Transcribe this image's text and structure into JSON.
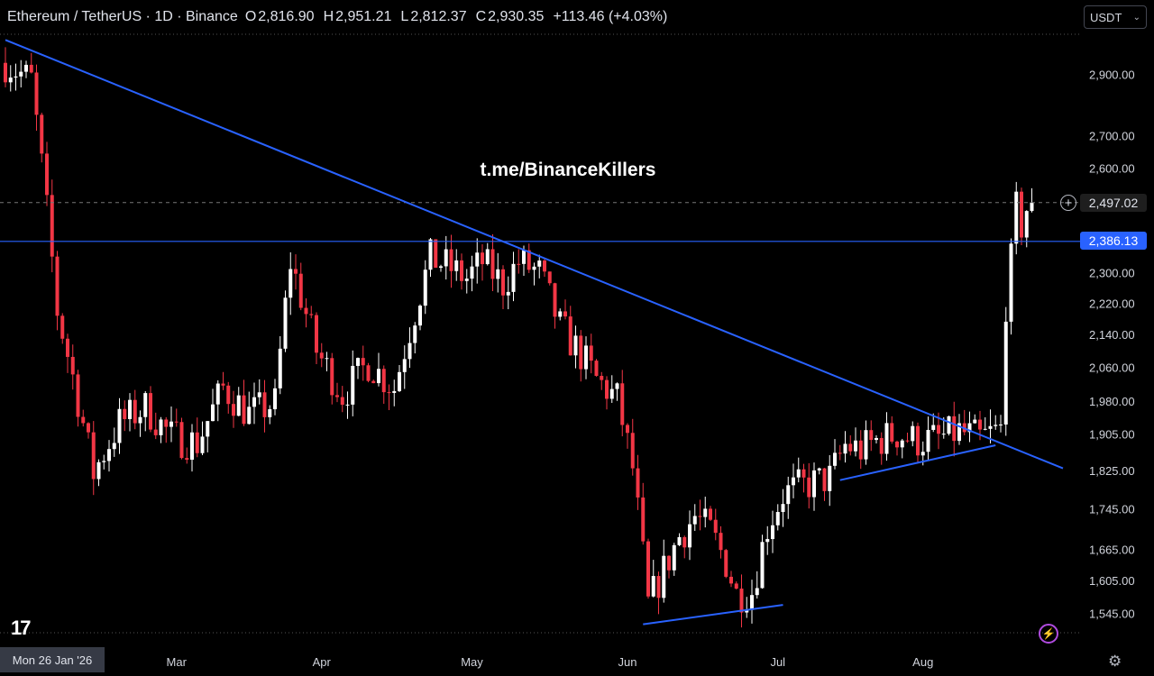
{
  "header": {
    "title": "Ethereum / TetherUS · 1D · Binance",
    "open_label": "O",
    "open": "2,816.90",
    "high_label": "H",
    "high": "2,951.21",
    "low_label": "L",
    "low": "2,812.37",
    "close_label": "C",
    "close": "2,930.35",
    "change": "+113.46 (+4.03%)"
  },
  "currency_selector": {
    "value": "USDT",
    "icon": "chevron-down-icon"
  },
  "watermark": "t.me/BinanceKillers",
  "crosshair_date": "Mon 26 Jan '26",
  "price_tags": {
    "last": "2,497.02",
    "level": "2,386.13"
  },
  "colors": {
    "up": "#ffffff",
    "down": "#f23645",
    "trendline": "#2962ff",
    "background": "#000000"
  },
  "chart_data": {
    "type": "candlestick",
    "symbol": "ETHUSDT",
    "interval": "1D",
    "x_ticks": [
      "Mar",
      "Apr",
      "May",
      "Jun",
      "Jul",
      "Aug"
    ],
    "y_ticks": [
      "2,900.00",
      "2,700.00",
      "2,600.00",
      "2,300.00",
      "2,220.00",
      "2,140.00",
      "2,060.00",
      "1,980.00",
      "1,905.00",
      "1,825.00",
      "1,745.00",
      "1,665.00",
      "1,605.00",
      "1,545.00"
    ],
    "y_scale": "log",
    "ylim": [
      1510,
      3040
    ],
    "anchors": [
      {
        "day": 0,
        "price": 2940
      },
      {
        "day": 5,
        "price": 2880
      },
      {
        "day": 10,
        "price": 2200
      },
      {
        "day": 17,
        "price": 1820
      },
      {
        "day": 22,
        "price": 1930
      },
      {
        "day": 27,
        "price": 1965
      },
      {
        "day": 32,
        "price": 1900
      },
      {
        "day": 37,
        "price": 1885
      },
      {
        "day": 42,
        "price": 2010
      },
      {
        "day": 47,
        "price": 1950
      },
      {
        "day": 52,
        "price": 1975
      },
      {
        "day": 55,
        "price": 2330
      },
      {
        "day": 60,
        "price": 2100
      },
      {
        "day": 65,
        "price": 1995
      },
      {
        "day": 70,
        "price": 2070
      },
      {
        "day": 75,
        "price": 2010
      },
      {
        "day": 79,
        "price": 2200
      },
      {
        "day": 82,
        "price": 2340
      },
      {
        "day": 85,
        "price": 2320
      },
      {
        "day": 89,
        "price": 2285
      },
      {
        "day": 92,
        "price": 2330
      },
      {
        "day": 96,
        "price": 2270
      },
      {
        "day": 99,
        "price": 2330
      },
      {
        "day": 103,
        "price": 2300
      },
      {
        "day": 107,
        "price": 2160
      },
      {
        "day": 111,
        "price": 2090
      },
      {
        "day": 114,
        "price": 2030
      },
      {
        "day": 118,
        "price": 1985
      },
      {
        "day": 121,
        "price": 1830
      },
      {
        "day": 124,
        "price": 1560
      },
      {
        "day": 127,
        "price": 1625
      },
      {
        "day": 130,
        "price": 1690
      },
      {
        "day": 133,
        "price": 1730
      },
      {
        "day": 136,
        "price": 1700
      },
      {
        "day": 139,
        "price": 1640
      },
      {
        "day": 141,
        "price": 1580
      },
      {
        "day": 144,
        "price": 1585
      },
      {
        "day": 147,
        "price": 1710
      },
      {
        "day": 150,
        "price": 1775
      },
      {
        "day": 153,
        "price": 1790
      },
      {
        "day": 156,
        "price": 1800
      },
      {
        "day": 159,
        "price": 1810
      },
      {
        "day": 162,
        "price": 1880
      },
      {
        "day": 165,
        "price": 1870
      },
      {
        "day": 168,
        "price": 1890
      },
      {
        "day": 172,
        "price": 1905
      },
      {
        "day": 176,
        "price": 1890
      },
      {
        "day": 180,
        "price": 1895
      },
      {
        "day": 184,
        "price": 1910
      },
      {
        "day": 188,
        "price": 1895
      },
      {
        "day": 190,
        "price": 1905
      },
      {
        "day": 192,
        "price": 1915
      },
      {
        "day": 193,
        "price": 2220
      },
      {
        "day": 194,
        "price": 2330
      },
      {
        "day": 195,
        "price": 2480
      },
      {
        "day": 196,
        "price": 2430
      },
      {
        "day": 197,
        "price": 2480
      },
      {
        "day": 198,
        "price": 2497
      }
    ],
    "horizontal_level": 2386.13,
    "trendlines": [
      {
        "from": {
          "day": 0,
          "price": 3020
        },
        "to": {
          "day": 204,
          "price": 1830
        }
      },
      {
        "from": {
          "day": 123,
          "price": 1525
        },
        "to": {
          "day": 150,
          "price": 1560
        }
      },
      {
        "from": {
          "day": 161,
          "price": 1805
        },
        "to": {
          "day": 191,
          "price": 1880
        }
      }
    ]
  }
}
